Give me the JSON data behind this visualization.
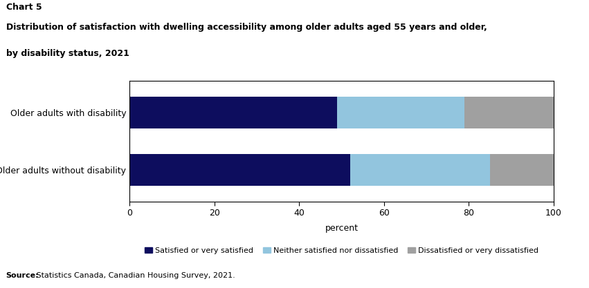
{
  "categories": [
    "Older adults with disability",
    "Older adults without disability"
  ],
  "satisfied": [
    49,
    52
  ],
  "neither": [
    30,
    33
  ],
  "dissatisfied": [
    21,
    15
  ],
  "colors": {
    "satisfied": "#0d0d5e",
    "neither": "#92c5de",
    "dissatisfied": "#a0a0a0"
  },
  "legend_labels": [
    "Satisfied or very satisfied",
    "Neither satisfied nor dissatisfied",
    "Dissatisfied or very dissatisfied"
  ],
  "xlabel": "percent",
  "xlim": [
    0,
    100
  ],
  "xticks": [
    0,
    20,
    40,
    60,
    80,
    100
  ],
  "chart_label": "Chart 5",
  "title_line1": "Distribution of satisfaction with dwelling accessibility among older adults aged 55 years and older,",
  "title_line2": "by disability status, 2021",
  "source_bold": "Source:",
  "source_normal": " Statistics Canada, Canadian Housing Survey, 2021.",
  "background_color": "#ffffff",
  "bar_height": 0.55
}
